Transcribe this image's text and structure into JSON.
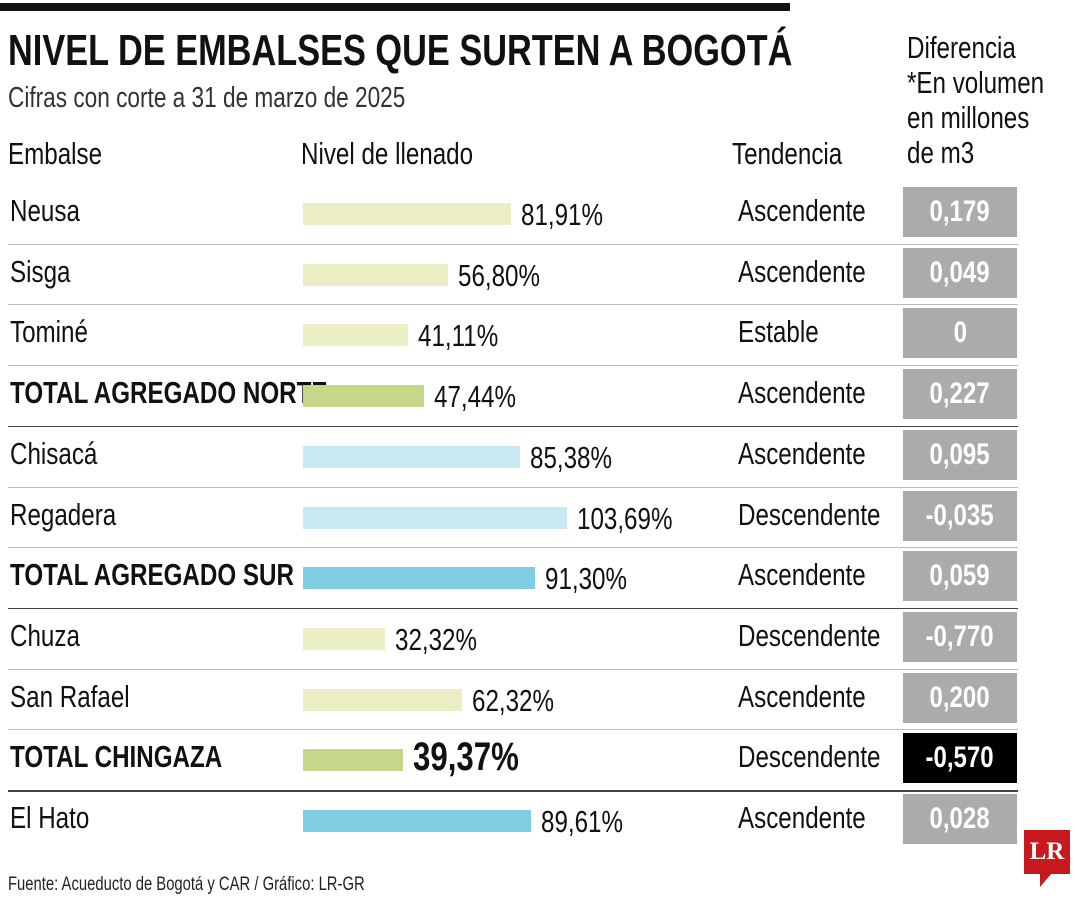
{
  "header": {
    "title": "NIVEL DE EMBALSES QUE SURTEN A BOGOTÁ",
    "subtitle": "Cifras con corte a 31 de marzo de 2025",
    "col_embalse": "Embalse",
    "col_nivel": "Nivel de llenado",
    "col_tendencia": "Tendencia",
    "col_diferencia": [
      "Diferencia",
      "*En volumen",
      "en millones",
      "de m3"
    ]
  },
  "colors": {
    "light_yellow": "#ecefc4",
    "green_total": "#c5d88a",
    "light_blue": "#c8e8f2",
    "blue_total": "#7fcde3",
    "gray_box": "#ababab",
    "black_box": "#000000",
    "logo_red": "#c8191e"
  },
  "chart_data": {
    "type": "table",
    "columns": [
      "Embalse",
      "Nivel de llenado",
      "Tendencia",
      "Diferencia *En volumen en millones de m3"
    ],
    "rows": [
      {
        "embalse": "Neusa",
        "nivel": 81.91,
        "nivel_label": "81,91%",
        "tendencia": "Ascendente",
        "diferencia": "0,179",
        "bar_color": "light_yellow",
        "bold": false
      },
      {
        "embalse": "Sisga",
        "nivel": 56.8,
        "nivel_label": "56,80%",
        "tendencia": "Ascendente",
        "diferencia": "0,049",
        "bar_color": "light_yellow",
        "bold": false
      },
      {
        "embalse": "Tominé",
        "nivel": 41.11,
        "nivel_label": "41,11%",
        "tendencia": "Estable",
        "diferencia": "0",
        "bar_color": "light_yellow",
        "bold": false
      },
      {
        "embalse": "TOTAL AGREGADO NORTE",
        "nivel": 47.44,
        "nivel_label": "47,44%",
        "tendencia": "Ascendente",
        "diferencia": "0,227",
        "bar_color": "green_total",
        "bold": true,
        "sep_after": "dark"
      },
      {
        "embalse": "Chisacá",
        "nivel": 85.38,
        "nivel_label": "85,38%",
        "tendencia": "Ascendente",
        "diferencia": "0,095",
        "bar_color": "light_blue",
        "bold": false
      },
      {
        "embalse": "Regadera",
        "nivel": 103.69,
        "nivel_label": "103,69%",
        "tendencia": "Descendente",
        "diferencia": "-0,035",
        "bar_color": "light_blue",
        "bold": false
      },
      {
        "embalse": "TOTAL AGREGADO SUR",
        "nivel": 91.3,
        "nivel_label": "91,30%",
        "tendencia": "Ascendente",
        "diferencia": "0,059",
        "bar_color": "blue_total",
        "bold": true,
        "sep_after": "dark"
      },
      {
        "embalse": "Chuza",
        "nivel": 32.32,
        "nivel_label": "32,32%",
        "tendencia": "Descendente",
        "diferencia": "-0,770",
        "bar_color": "light_yellow",
        "bold": false
      },
      {
        "embalse": "San Rafael",
        "nivel": 62.32,
        "nivel_label": "62,32%",
        "tendencia": "Ascendente",
        "diferencia": "0,200",
        "bar_color": "light_yellow",
        "bold": false
      },
      {
        "embalse": "TOTAL CHINGAZA",
        "nivel": 39.37,
        "nivel_label": "39,37%",
        "tendencia": "Descendente",
        "diferencia": "-0,570",
        "bar_color": "green_total",
        "bold": true,
        "highlight": true,
        "sep_after": "dark"
      },
      {
        "embalse": "El Hato",
        "nivel": 89.61,
        "nivel_label": "89,61%",
        "tendencia": "Ascendente",
        "diferencia": "0,028",
        "bar_color": "blue_total",
        "bold": false
      }
    ]
  },
  "footer": {
    "source": "Fuente: Acueducto de Bogotá y CAR / Gráfico: LR-GR",
    "logo": "LR"
  }
}
